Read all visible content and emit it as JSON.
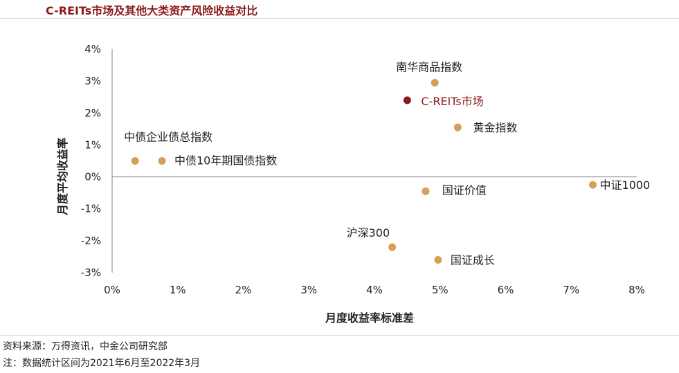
{
  "header": {
    "title": "C-REITs市场及其他大类资产风险收益对比"
  },
  "footer": {
    "source": "资料来源：万得资讯，中金公司研究部",
    "note": "注：数据统计区间为2021年6月至2022年3月"
  },
  "chart_data": {
    "type": "scatter",
    "title": "C-REITs市场及其他大类资产风险收益对比",
    "xlabel": "月度收益率标准差",
    "ylabel": "月度平均收益率",
    "xlim": [
      0,
      8
    ],
    "ylim": [
      -3,
      4
    ],
    "x_ticks": [
      "0%",
      "1%",
      "2%",
      "3%",
      "4%",
      "5%",
      "6%",
      "7%",
      "8%"
    ],
    "y_ticks": [
      "4%",
      "3%",
      "2%",
      "1%",
      "0%",
      "-1%",
      "-2%",
      "-3%"
    ],
    "grid": false,
    "colors": {
      "default": "#d4a055",
      "highlight": "#8b1a1a"
    },
    "points": [
      {
        "label": "中债企业债总指数",
        "x": 0.35,
        "y": 0.5,
        "highlight": false
      },
      {
        "label": "中债10年期国债指数",
        "x": 0.76,
        "y": 0.5,
        "highlight": false
      },
      {
        "label": "南华商品指数",
        "x": 4.92,
        "y": 2.95,
        "highlight": false
      },
      {
        "label": "C-REITs市场",
        "x": 4.5,
        "y": 2.4,
        "highlight": true
      },
      {
        "label": "黄金指数",
        "x": 5.27,
        "y": 1.55,
        "highlight": false
      },
      {
        "label": "国证价值",
        "x": 4.78,
        "y": -0.45,
        "highlight": false
      },
      {
        "label": "中证1000",
        "x": 7.33,
        "y": -0.25,
        "highlight": false
      },
      {
        "label": "沪深300",
        "x": 4.27,
        "y": -2.2,
        "highlight": false
      },
      {
        "label": "国证成长",
        "x": 4.97,
        "y": -2.6,
        "highlight": false
      }
    ]
  }
}
